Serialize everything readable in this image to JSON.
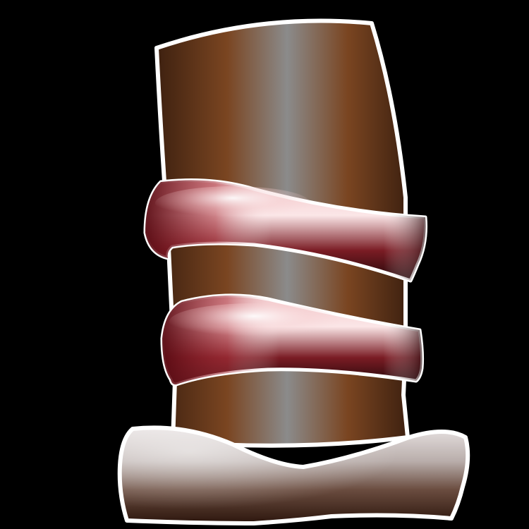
{
  "image": {
    "subject": "top-hat-icon",
    "background_color": "#000000",
    "outline_color": "#ffffff",
    "crown": {
      "colors": [
        "#3e2110",
        "#7a4521",
        "#8b8b8b",
        "#7a4521",
        "#3e2110"
      ]
    },
    "bands": [
      {
        "name": "upper-band",
        "colors": [
          "#5a0b13",
          "#f7d6d8",
          "#250a0d"
        ]
      },
      {
        "name": "lower-band",
        "colors": [
          "#5a0b13",
          "#f7d6d8",
          "#250a0d"
        ]
      }
    ],
    "brim": {
      "colors": [
        "#dcd6d6",
        "#8a7a76",
        "#3a1f14"
      ]
    }
  }
}
